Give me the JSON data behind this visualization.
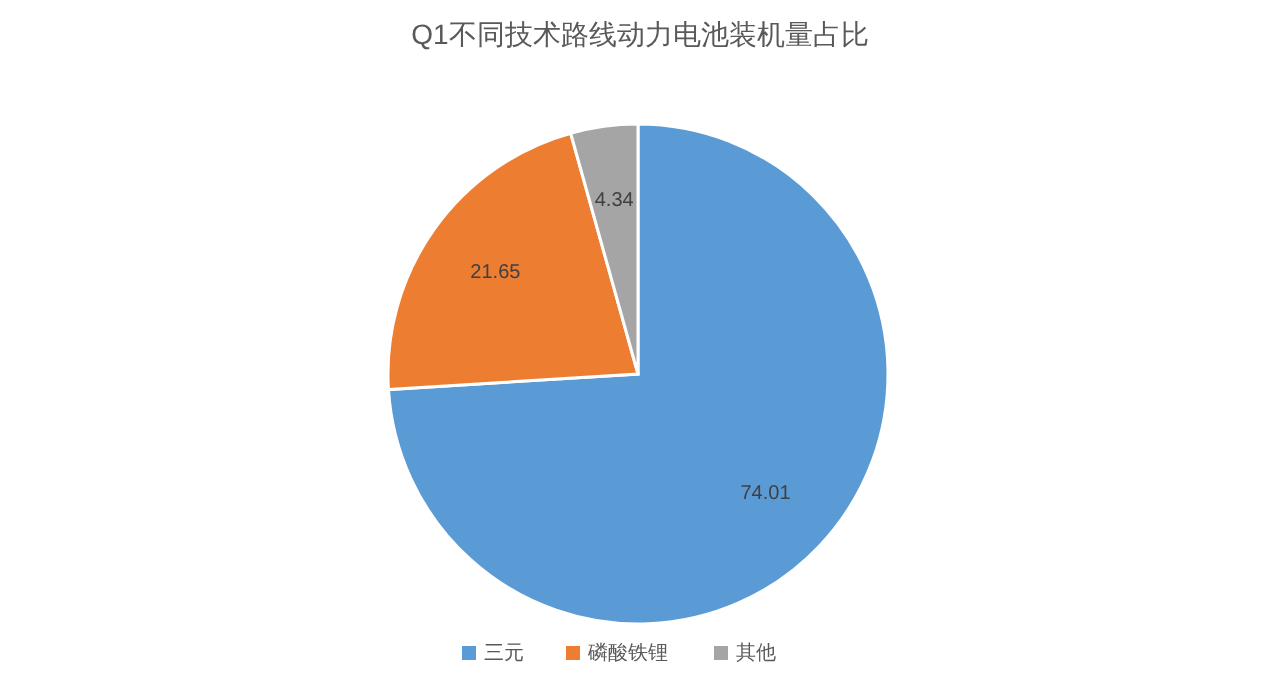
{
  "chart_data": {
    "type": "pie",
    "title": "Q1不同技术路线动力电池装机量占比",
    "categories": [
      "三元",
      "磷酸铁锂",
      "其他"
    ],
    "values": [
      74.01,
      21.65,
      4.34
    ],
    "colors": [
      "#5b9bd5",
      "#ed7d31",
      "#a5a5a5"
    ],
    "data_labels": true,
    "legend": "bottom"
  }
}
